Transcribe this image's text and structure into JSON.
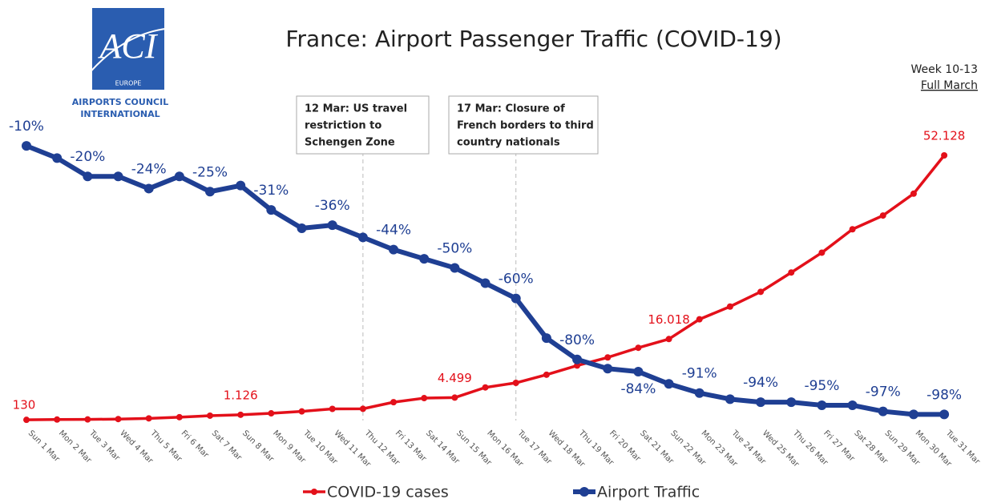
{
  "logo": {
    "acronym": "ACI",
    "region": "EUROPE",
    "name_lines": [
      "AIRPORTS COUNCIL",
      "INTERNATIONAL"
    ]
  },
  "period": {
    "week": "Week 10-13",
    "range": "Full March"
  },
  "annotations": [
    {
      "lines": [
        "12 Mar: US travel",
        "restriction to",
        "Schengen Zone"
      ]
    },
    {
      "lines": [
        "17 Mar: Closure of",
        "French borders to third",
        "country nationals"
      ]
    }
  ],
  "chart_data": {
    "type": "line",
    "title": "France: Airport Passenger Traffic (COVID-19)",
    "categories": [
      "Sun 1 Mar",
      "Mon 2 Mar",
      "Tue 3 Mar",
      "Wed 4 Mar",
      "Thu 5 Mar",
      "Fri 6 Mar",
      "Sat 7 Mar",
      "Sun 8 Mar",
      "Mon 9 Mar",
      "Tue 10 Mar",
      "Wed 11 Mar",
      "Thu 12 Mar",
      "Fri 13 Mar",
      "Sat 14 Mar",
      "Sun 15 Mar",
      "Mon 16 Mar",
      "Tue 17 Mar",
      "Wed 18 Mar",
      "Thu 19 Mar",
      "Fri 20 Mar",
      "Sat 21 Mar",
      "Sun 22 Mar",
      "Mon 23 Mar",
      "Tue 24 Mar",
      "Wed 25 Mar",
      "Thu 26 Mar",
      "Fri 27 Mar",
      "Sat 28 Mar",
      "Sun 29 Mar",
      "Mon 30 Mar",
      "Tue 31 Mar"
    ],
    "ylim": [
      -100,
      0
    ],
    "y2lim": [
      0,
      60000
    ],
    "legend": "bottom",
    "series": [
      {
        "name": "COVID-19 cases",
        "color": "#e3101a",
        "axis": "y2",
        "values": [
          130,
          191,
          212,
          285,
          423,
          653,
          949,
          1126,
          1412,
          1784,
          2281,
          2300,
          3600,
          4400,
          4499,
          6500,
          7400,
          9000,
          10800,
          12400,
          14300,
          16018,
          19900,
          22400,
          25300,
          29100,
          33000,
          37600,
          40300,
          44600,
          52128
        ],
        "value_labels": [
          "130",
          null,
          null,
          null,
          null,
          null,
          null,
          "1.126",
          null,
          null,
          null,
          null,
          null,
          null,
          "4.499",
          null,
          null,
          null,
          null,
          null,
          null,
          "16.018",
          null,
          null,
          null,
          null,
          null,
          null,
          null,
          null,
          "52.128"
        ]
      },
      {
        "name": "Airport Traffic",
        "color": "#1f3f93",
        "values": [
          -10,
          -14,
          -20,
          -20,
          -24,
          -20,
          -25,
          -23,
          -31,
          -37,
          -36,
          -40,
          -44,
          -47,
          -50,
          -55,
          -60,
          -73,
          -80,
          -83,
          -84,
          -88,
          -91,
          -93,
          -94,
          -94,
          -95,
          -95,
          -97,
          -98,
          -98
        ],
        "value_labels": [
          "-10%",
          null,
          "-20%",
          null,
          "-24%",
          null,
          "-25%",
          null,
          "-31%",
          null,
          "-36%",
          null,
          "-44%",
          null,
          "-50%",
          null,
          "-60%",
          null,
          "-80%",
          null,
          "-84%",
          null,
          "-91%",
          null,
          "-94%",
          null,
          "-95%",
          null,
          "-97%",
          null,
          "-98%"
        ]
      }
    ]
  }
}
